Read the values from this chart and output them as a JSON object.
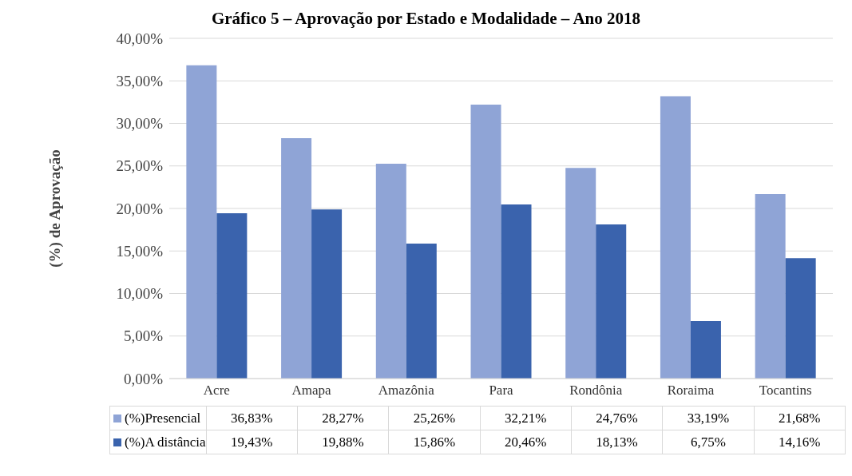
{
  "chart_data": {
    "type": "bar",
    "title": "Gráfico 5 – Aprovação por Estado e Modalidade – Ano 2018",
    "ylabel": "(%) de Aprovação",
    "categories": [
      "Acre",
      "Amapa",
      "Amazônia",
      "Para",
      "Rondônia",
      "Roraima",
      "Tocantins"
    ],
    "series": [
      {
        "name": "(%)Presencial",
        "color": "#8fa4d6",
        "values": [
          36.83,
          28.27,
          25.26,
          32.21,
          24.76,
          33.19,
          21.68
        ],
        "value_labels": [
          "36,83%",
          "28,27%",
          "25,26%",
          "32,21%",
          "24,76%",
          "33,19%",
          "21,68%"
        ]
      },
      {
        "name": "(%)A distância",
        "color": "#3a63ad",
        "values": [
          19.43,
          19.88,
          15.86,
          20.46,
          18.13,
          6.75,
          14.16
        ],
        "value_labels": [
          "19,43%",
          "19,88%",
          "15,86%",
          "20,46%",
          "18,13%",
          "6,75%",
          "14,16%"
        ]
      }
    ],
    "ylim": [
      0,
      40
    ],
    "yticks": [
      {
        "value": 0,
        "label": "0,00%"
      },
      {
        "value": 5,
        "label": "5,00%"
      },
      {
        "value": 10,
        "label": "10,00%"
      },
      {
        "value": 15,
        "label": "15,00%"
      },
      {
        "value": 20,
        "label": "20,00%"
      },
      {
        "value": 25,
        "label": "25,00%"
      },
      {
        "value": 30,
        "label": "30,00%"
      },
      {
        "value": 35,
        "label": "35,00%"
      },
      {
        "value": 40,
        "label": "40,00%"
      }
    ],
    "grid": "y",
    "legend": "bottom"
  }
}
